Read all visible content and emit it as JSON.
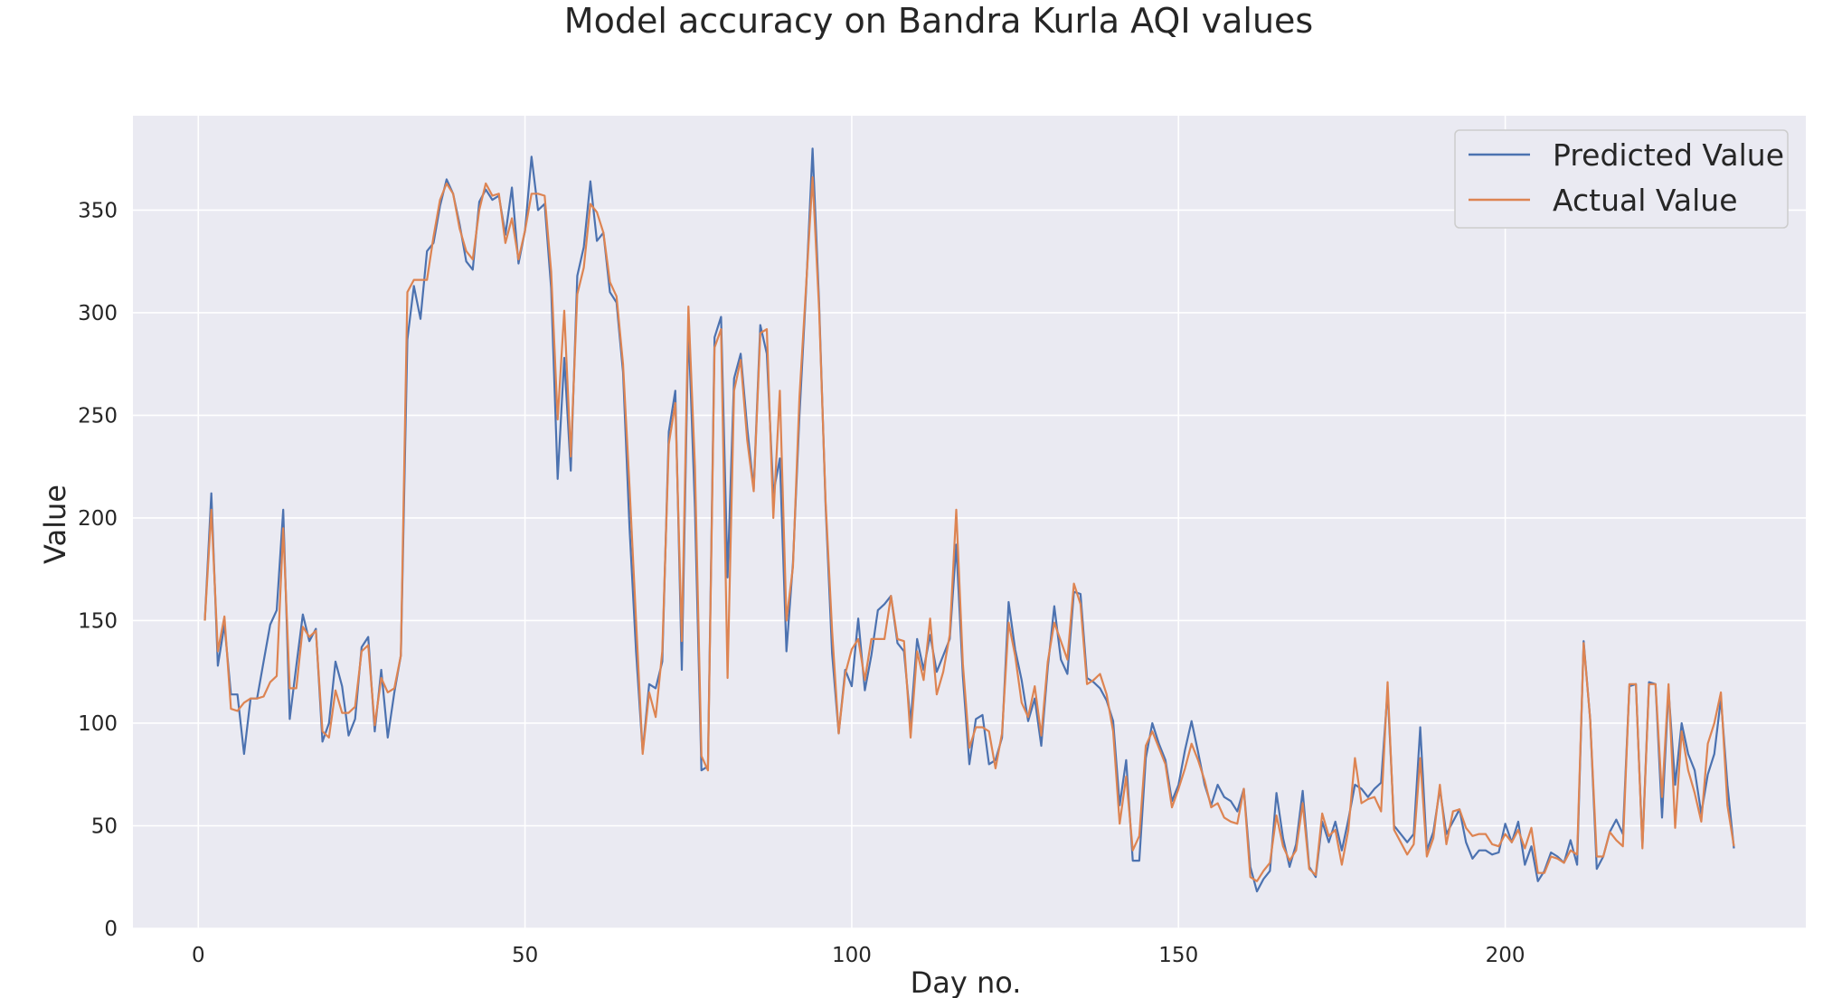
{
  "chart_data": {
    "type": "line",
    "title": "Model accuracy on Bandra Kurla AQI values",
    "xlabel": "Day no.",
    "ylabel": "Value",
    "xlim": [
      -10,
      246
    ],
    "ylim": [
      0,
      396
    ],
    "xticks": [
      0,
      50,
      100,
      150,
      200
    ],
    "yticks": [
      0,
      50,
      100,
      150,
      200,
      250,
      300,
      350
    ],
    "grid": true,
    "legend_position": "top-right",
    "style": {
      "background": "#EAEAF2",
      "grid_color": "#FFFFFF"
    },
    "x": [
      1,
      2,
      3,
      4,
      5,
      6,
      7,
      8,
      9,
      10,
      11,
      12,
      13,
      14,
      15,
      16,
      17,
      18,
      19,
      20,
      21,
      22,
      23,
      24,
      25,
      26,
      27,
      28,
      29,
      30,
      31,
      32,
      33,
      34,
      35,
      36,
      37,
      38,
      39,
      40,
      41,
      42,
      43,
      44,
      45,
      46,
      47,
      48,
      49,
      50,
      51,
      52,
      53,
      54,
      55,
      56,
      57,
      58,
      59,
      60,
      61,
      62,
      63,
      64,
      65,
      66,
      67,
      68,
      69,
      70,
      71,
      72,
      73,
      74,
      75,
      76,
      77,
      78,
      79,
      80,
      81,
      82,
      83,
      84,
      85,
      86,
      87,
      88,
      89,
      90,
      91,
      92,
      93,
      94,
      95,
      96,
      97,
      98,
      99,
      100,
      101,
      102,
      103,
      104,
      105,
      106,
      107,
      108,
      109,
      110,
      111,
      112,
      113,
      114,
      115,
      116,
      117,
      118,
      119,
      120,
      121,
      122,
      123,
      124,
      125,
      126,
      127,
      128,
      129,
      130,
      131,
      132,
      133,
      134,
      135,
      136,
      137,
      138,
      139,
      140,
      141,
      142,
      143,
      144,
      145,
      146,
      147,
      148,
      149,
      150,
      151,
      152,
      153,
      154,
      155,
      156,
      157,
      158,
      159,
      160,
      161,
      162,
      163,
      164,
      165,
      166,
      167,
      168,
      169,
      170,
      171,
      172,
      173,
      174,
      175,
      176,
      177,
      178,
      179,
      180,
      181,
      182,
      183,
      184,
      185,
      186,
      187,
      188,
      189,
      190,
      191,
      192,
      193,
      194,
      195,
      196,
      197,
      198,
      199,
      200,
      201,
      202,
      203,
      204,
      205,
      206,
      207,
      208,
      209,
      210,
      211,
      212,
      213,
      214,
      215,
      216,
      217,
      218,
      219,
      220,
      221,
      222,
      223,
      224,
      225,
      226,
      227,
      228,
      229,
      230,
      231,
      232,
      233,
      234,
      235
    ],
    "series": [
      {
        "name": "Predicted Value",
        "color": "#4C72B0",
        "values": [
          150,
          212,
          128,
          148,
          114,
          114,
          85,
          112,
          112,
          130,
          148,
          155,
          204,
          102,
          128,
          153,
          140,
          146,
          91,
          100,
          130,
          118,
          94,
          102,
          137,
          142,
          96,
          126,
          93,
          115,
          133,
          287,
          313,
          297,
          330,
          334,
          352,
          365,
          358,
          343,
          325,
          321,
          354,
          360,
          355,
          357,
          338,
          361,
          324,
          340,
          376,
          350,
          353,
          312,
          219,
          278,
          223,
          318,
          332,
          364,
          335,
          339,
          310,
          305,
          271,
          195,
          135,
          86,
          119,
          117,
          130,
          242,
          262,
          126,
          294,
          205,
          77,
          79,
          288,
          298,
          171,
          268,
          280,
          244,
          214,
          294,
          280,
          212,
          229,
          135,
          178,
          250,
          310,
          380,
          305,
          206,
          134,
          95,
          126,
          118,
          151,
          116,
          133,
          155,
          158,
          162,
          139,
          135,
          100,
          141,
          126,
          143,
          125,
          133,
          141,
          187,
          123,
          80,
          102,
          104,
          80,
          82,
          93,
          159,
          136,
          121,
          101,
          112,
          89,
          127,
          157,
          131,
          124,
          164,
          163,
          122,
          120,
          117,
          111,
          101,
          60,
          82,
          33,
          33,
          83,
          100,
          90,
          82,
          62,
          70,
          87,
          101,
          86,
          70,
          60,
          70,
          64,
          62,
          57,
          68,
          30,
          18,
          24,
          28,
          66,
          44,
          30,
          41,
          67,
          30,
          25,
          52,
          42,
          52,
          38,
          53,
          70,
          68,
          64,
          68,
          71,
          116,
          50,
          46,
          42,
          46,
          98,
          38,
          47,
          68,
          46,
          52,
          58,
          42,
          34,
          38,
          38,
          36,
          37,
          51,
          42,
          52,
          31,
          40,
          23,
          28,
          37,
          35,
          32,
          43,
          31,
          140,
          102,
          29,
          35,
          47,
          53,
          46,
          118,
          119,
          40,
          120,
          119,
          54,
          116,
          70,
          100,
          85,
          77,
          56,
          75,
          85,
          112,
          70,
          39
        ]
      },
      {
        "name": "Actual Value",
        "color": "#DD8452",
        "values": [
          150,
          204,
          135,
          152,
          107,
          106,
          110,
          112,
          112,
          113,
          120,
          123,
          195,
          117,
          117,
          147,
          142,
          145,
          96,
          93,
          116,
          105,
          105,
          108,
          135,
          138,
          99,
          122,
          115,
          117,
          133,
          310,
          316,
          316,
          316,
          337,
          355,
          363,
          358,
          341,
          330,
          326,
          350,
          363,
          357,
          358,
          334,
          346,
          326,
          340,
          358,
          358,
          357,
          320,
          248,
          301,
          230,
          309,
          322,
          353,
          349,
          339,
          315,
          308,
          275,
          215,
          150,
          85,
          115,
          103,
          135,
          236,
          256,
          140,
          303,
          225,
          84,
          77,
          283,
          292,
          122,
          262,
          277,
          238,
          213,
          290,
          292,
          200,
          262,
          150,
          176,
          259,
          312,
          366,
          302,
          208,
          145,
          95,
          124,
          136,
          141,
          121,
          141,
          141,
          141,
          162,
          141,
          140,
          93,
          135,
          121,
          151,
          114,
          125,
          143,
          204,
          129,
          88,
          98,
          98,
          96,
          78,
          95,
          149,
          133,
          110,
          103,
          118,
          94,
          130,
          149,
          140,
          131,
          168,
          158,
          119,
          121,
          124,
          114,
          96,
          51,
          74,
          38,
          45,
          89,
          96,
          88,
          80,
          59,
          68,
          78,
          90,
          82,
          72,
          59,
          61,
          54,
          52,
          51,
          68,
          25,
          23,
          28,
          32,
          55,
          40,
          33,
          38,
          61,
          29,
          26,
          56,
          45,
          48,
          31,
          48,
          83,
          61,
          63,
          64,
          57,
          120,
          48,
          42,
          36,
          41,
          83,
          35,
          44,
          70,
          41,
          57,
          58,
          49,
          45,
          46,
          46,
          41,
          40,
          46,
          42,
          48,
          39,
          49,
          27,
          27,
          35,
          34,
          32,
          38,
          36,
          139,
          102,
          35,
          35,
          47,
          43,
          40,
          119,
          119,
          39,
          119,
          119,
          64,
          119,
          49,
          96,
          77,
          66,
          52,
          90,
          100,
          115,
          60,
          40
        ]
      }
    ]
  }
}
